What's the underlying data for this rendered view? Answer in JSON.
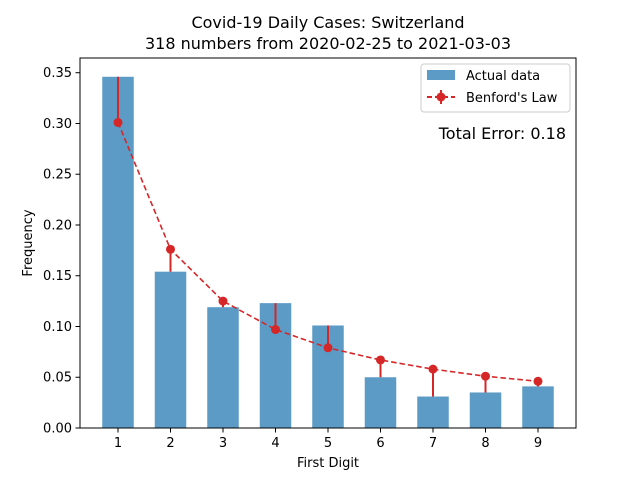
{
  "chart_data": {
    "type": "bar",
    "title": "Covid-19 Daily Cases: Switzerland",
    "subtitle": "318 numbers from 2020-02-25 to 2021-03-03",
    "xlabel": "First Digit",
    "ylabel": "Frequency",
    "categories": [
      "1",
      "2",
      "3",
      "4",
      "5",
      "6",
      "7",
      "8",
      "9"
    ],
    "ylim": [
      0,
      0.35
    ],
    "yticks": [
      0.0,
      0.05,
      0.1,
      0.15,
      0.2,
      0.25,
      0.3,
      0.35
    ],
    "ytick_labels": [
      "0.00",
      "0.05",
      "0.10",
      "0.15",
      "0.20",
      "0.25",
      "0.30",
      "0.35"
    ],
    "series": [
      {
        "name": "Actual data",
        "kind": "bar",
        "color": "#5b9bc6",
        "values": [
          0.346,
          0.154,
          0.119,
          0.123,
          0.101,
          0.05,
          0.031,
          0.035,
          0.041
        ]
      },
      {
        "name": "Benford's Law",
        "kind": "line-with-error",
        "color": "#d62728",
        "values": [
          0.301,
          0.176,
          0.125,
          0.097,
          0.079,
          0.067,
          0.058,
          0.051,
          0.046
        ]
      }
    ],
    "legend": {
      "position": "top-right",
      "entries": [
        "Actual data",
        "Benford's Law"
      ]
    },
    "annotation": {
      "text": "Total Error: 0.18",
      "color": "#d62728",
      "position": "top-right"
    },
    "grid": false
  }
}
